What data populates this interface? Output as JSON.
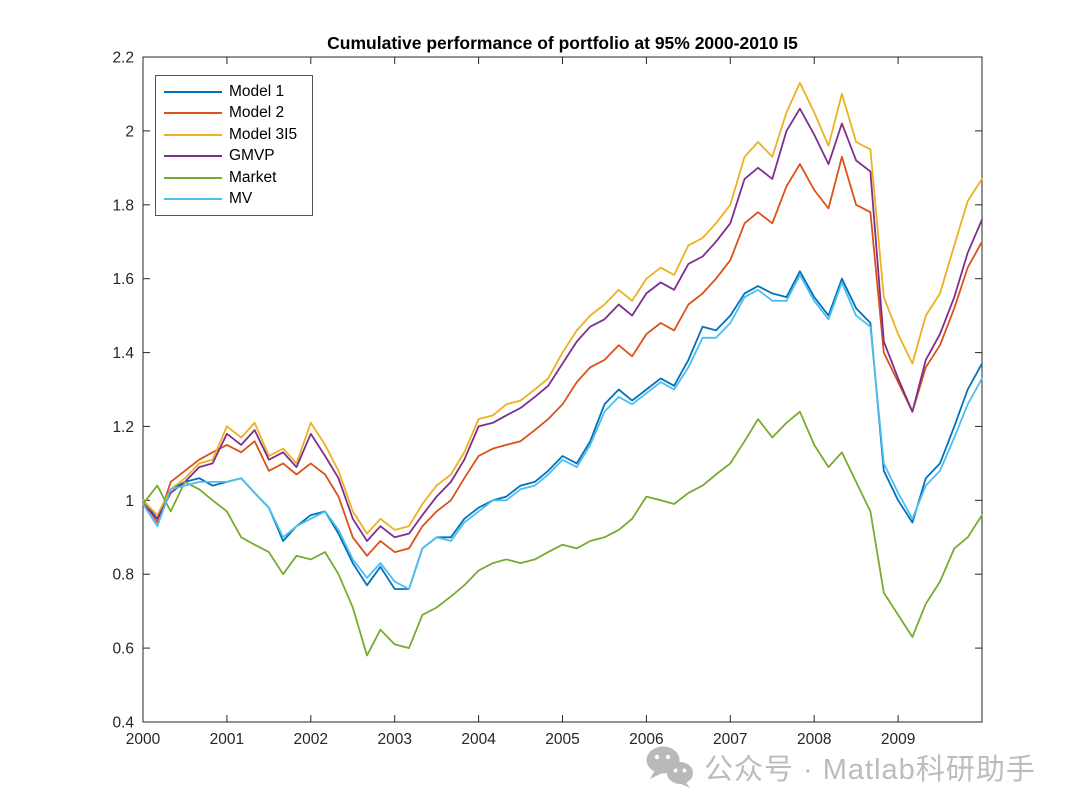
{
  "figure": {
    "title": "Cumulative performance of portfolio at 95% 2000-2010 I5",
    "background_color": "#ffffff",
    "axis_color": "#262626"
  },
  "legend": {
    "position": "top-left",
    "entries": [
      {
        "label": "Model 1",
        "color": "#0072BD"
      },
      {
        "label": "Model 2",
        "color": "#D95319"
      },
      {
        "label": "Model 3I5",
        "color": "#EDB120"
      },
      {
        "label": "GMVP",
        "color": "#7E2F8E"
      },
      {
        "label": "Market",
        "color": "#77AC30"
      },
      {
        "label": "MV",
        "color": "#4DBEEE"
      }
    ]
  },
  "watermark": {
    "text": "公众号 · Matlab科研助手",
    "icon": "wechat-icon",
    "color": "#bcbcbc"
  },
  "chart_data": {
    "type": "line",
    "title": "Cumulative performance of portfolio at 95% 2000-2010 I5",
    "xlabel": "",
    "ylabel": "",
    "xlim": [
      2000,
      2010
    ],
    "ylim": [
      0.4,
      2.2
    ],
    "grid": false,
    "legend_position": "top-left",
    "x_ticks": [
      2000,
      2001,
      2002,
      2003,
      2004,
      2005,
      2006,
      2007,
      2008,
      2009
    ],
    "x_tick_labels": [
      "2000",
      "2001",
      "2002",
      "2003",
      "2004",
      "2005",
      "2006",
      "2007",
      "2008",
      "2009"
    ],
    "y_ticks": [
      0.4,
      0.6,
      0.8,
      1.0,
      1.2,
      1.4,
      1.6,
      1.8,
      2.0,
      2.2
    ],
    "y_tick_labels": [
      "0.4",
      "0.6",
      "0.8",
      "1",
      "1.2",
      "1.4",
      "1.6",
      "1.8",
      "2",
      "2.2"
    ],
    "x": [
      2000.0,
      2000.17,
      2000.33,
      2000.5,
      2000.67,
      2000.83,
      2001.0,
      2001.17,
      2001.33,
      2001.5,
      2001.67,
      2001.83,
      2002.0,
      2002.17,
      2002.33,
      2002.5,
      2002.67,
      2002.83,
      2003.0,
      2003.17,
      2003.33,
      2003.5,
      2003.67,
      2003.83,
      2004.0,
      2004.17,
      2004.33,
      2004.5,
      2004.67,
      2004.83,
      2005.0,
      2005.17,
      2005.33,
      2005.5,
      2005.67,
      2005.83,
      2006.0,
      2006.17,
      2006.33,
      2006.5,
      2006.67,
      2006.83,
      2007.0,
      2007.17,
      2007.33,
      2007.5,
      2007.67,
      2007.83,
      2008.0,
      2008.17,
      2008.33,
      2008.5,
      2008.67,
      2008.83,
      2009.0,
      2009.17,
      2009.33,
      2009.5,
      2009.67,
      2009.83,
      2010.0
    ],
    "series": [
      {
        "name": "Model 1",
        "color": "#0072BD",
        "values": [
          1.0,
          0.95,
          1.03,
          1.05,
          1.06,
          1.04,
          1.05,
          1.06,
          1.02,
          0.98,
          0.89,
          0.93,
          0.96,
          0.97,
          0.91,
          0.83,
          0.77,
          0.82,
          0.76,
          0.76,
          0.87,
          0.9,
          0.9,
          0.95,
          0.98,
          1.0,
          1.01,
          1.04,
          1.05,
          1.08,
          1.12,
          1.1,
          1.16,
          1.26,
          1.3,
          1.27,
          1.3,
          1.33,
          1.31,
          1.38,
          1.47,
          1.46,
          1.5,
          1.56,
          1.58,
          1.56,
          1.55,
          1.62,
          1.55,
          1.5,
          1.6,
          1.52,
          1.48,
          1.08,
          1.0,
          0.94,
          1.06,
          1.1,
          1.2,
          1.3,
          1.37
        ]
      },
      {
        "name": "Model 2",
        "color": "#D95319",
        "values": [
          1.0,
          0.94,
          1.05,
          1.08,
          1.11,
          1.13,
          1.15,
          1.13,
          1.16,
          1.08,
          1.1,
          1.07,
          1.1,
          1.07,
          1.01,
          0.9,
          0.85,
          0.89,
          0.86,
          0.87,
          0.93,
          0.97,
          1.0,
          1.06,
          1.12,
          1.14,
          1.15,
          1.16,
          1.19,
          1.22,
          1.26,
          1.32,
          1.36,
          1.38,
          1.42,
          1.39,
          1.45,
          1.48,
          1.46,
          1.53,
          1.56,
          1.6,
          1.65,
          1.75,
          1.78,
          1.75,
          1.85,
          1.91,
          1.84,
          1.79,
          1.93,
          1.8,
          1.78,
          1.4,
          1.32,
          1.24,
          1.36,
          1.42,
          1.52,
          1.63,
          1.7
        ]
      },
      {
        "name": "Model 3I5",
        "color": "#EDB120",
        "values": [
          1.0,
          0.96,
          1.03,
          1.06,
          1.1,
          1.11,
          1.2,
          1.17,
          1.21,
          1.12,
          1.14,
          1.1,
          1.21,
          1.15,
          1.08,
          0.97,
          0.91,
          0.95,
          0.92,
          0.93,
          0.99,
          1.04,
          1.07,
          1.13,
          1.22,
          1.23,
          1.26,
          1.27,
          1.3,
          1.33,
          1.4,
          1.46,
          1.5,
          1.53,
          1.57,
          1.54,
          1.6,
          1.63,
          1.61,
          1.69,
          1.71,
          1.75,
          1.8,
          1.93,
          1.97,
          1.93,
          2.05,
          2.13,
          2.05,
          1.96,
          2.1,
          1.97,
          1.95,
          1.55,
          1.45,
          1.37,
          1.5,
          1.56,
          1.69,
          1.81,
          1.87
        ]
      },
      {
        "name": "GMVP",
        "color": "#7E2F8E",
        "values": [
          0.99,
          0.95,
          1.02,
          1.05,
          1.09,
          1.1,
          1.18,
          1.15,
          1.19,
          1.11,
          1.13,
          1.09,
          1.18,
          1.12,
          1.06,
          0.95,
          0.89,
          0.93,
          0.9,
          0.91,
          0.96,
          1.01,
          1.05,
          1.11,
          1.2,
          1.21,
          1.23,
          1.25,
          1.28,
          1.31,
          1.37,
          1.43,
          1.47,
          1.49,
          1.53,
          1.5,
          1.56,
          1.59,
          1.57,
          1.64,
          1.66,
          1.7,
          1.75,
          1.87,
          1.9,
          1.87,
          2.0,
          2.06,
          1.99,
          1.91,
          2.02,
          1.92,
          1.89,
          1.43,
          1.33,
          1.24,
          1.38,
          1.45,
          1.55,
          1.67,
          1.76
        ]
      },
      {
        "name": "Market",
        "color": "#77AC30",
        "values": [
          0.99,
          1.04,
          0.97,
          1.05,
          1.03,
          1.0,
          0.97,
          0.9,
          0.88,
          0.86,
          0.8,
          0.85,
          0.84,
          0.86,
          0.8,
          0.71,
          0.58,
          0.65,
          0.61,
          0.6,
          0.69,
          0.71,
          0.74,
          0.77,
          0.81,
          0.83,
          0.84,
          0.83,
          0.84,
          0.86,
          0.88,
          0.87,
          0.89,
          0.9,
          0.92,
          0.95,
          1.01,
          1.0,
          0.99,
          1.02,
          1.04,
          1.07,
          1.1,
          1.16,
          1.22,
          1.17,
          1.21,
          1.24,
          1.15,
          1.09,
          1.13,
          1.05,
          0.97,
          0.75,
          0.69,
          0.63,
          0.72,
          0.78,
          0.87,
          0.9,
          0.96
        ]
      },
      {
        "name": "MV",
        "color": "#4DBEEE",
        "values": [
          0.99,
          0.93,
          1.03,
          1.04,
          1.05,
          1.05,
          1.05,
          1.06,
          1.02,
          0.98,
          0.9,
          0.93,
          0.95,
          0.97,
          0.92,
          0.84,
          0.79,
          0.83,
          0.78,
          0.76,
          0.87,
          0.9,
          0.89,
          0.94,
          0.97,
          1.0,
          1.0,
          1.03,
          1.04,
          1.07,
          1.11,
          1.09,
          1.15,
          1.24,
          1.28,
          1.26,
          1.29,
          1.32,
          1.3,
          1.36,
          1.44,
          1.44,
          1.48,
          1.55,
          1.57,
          1.54,
          1.54,
          1.61,
          1.54,
          1.49,
          1.59,
          1.5,
          1.47,
          1.1,
          1.02,
          0.95,
          1.04,
          1.08,
          1.17,
          1.26,
          1.33
        ]
      }
    ]
  }
}
